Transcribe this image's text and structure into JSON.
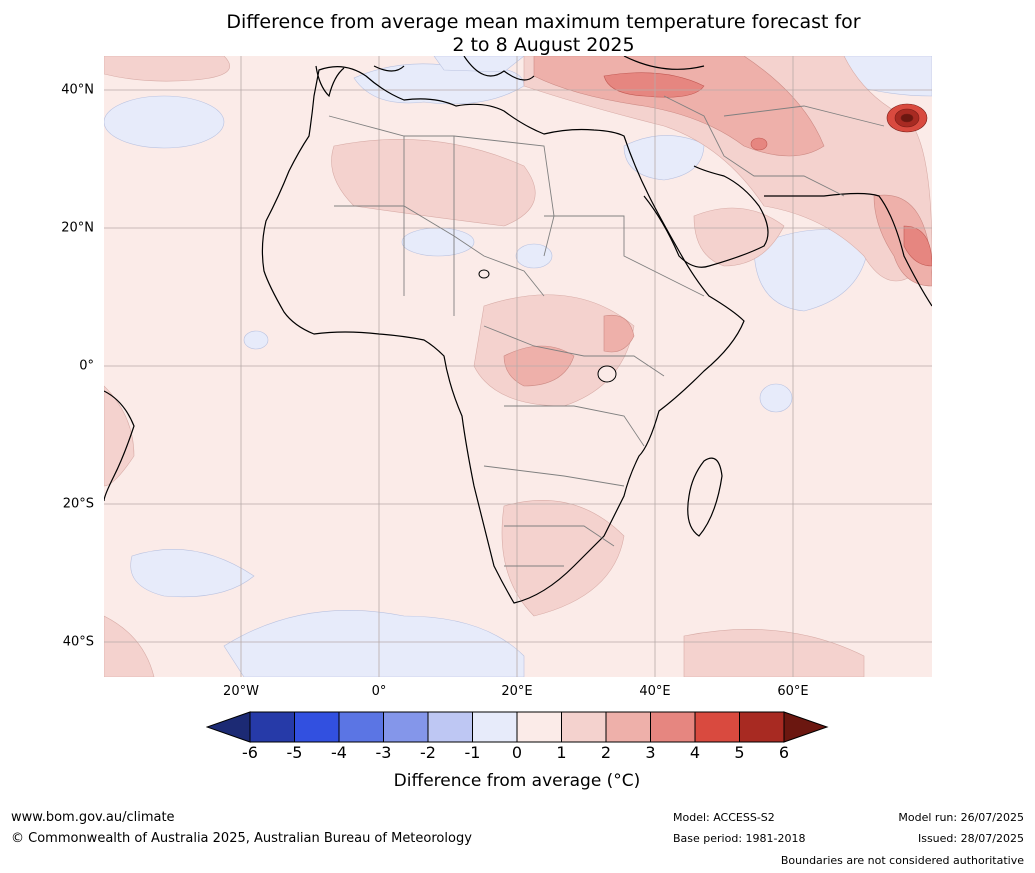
{
  "title": {
    "line1": "Difference from average mean maximum temperature forecast for",
    "line2": "2 to 8 August 2025"
  },
  "map": {
    "region": "Africa",
    "base_color": "#fbebe8",
    "lat_labels": [
      "40°N",
      "20°N",
      "0°",
      "20°S",
      "40°S"
    ],
    "lon_labels": [
      "20°W",
      "0°",
      "20°E",
      "40°E",
      "60°E"
    ],
    "notable_features": [
      "Strongest warm anomaly (+4 to +6 °C) near 37°N 74°E",
      "Warm anomalies (+1 to +3 °C) over Türkiye, Iran, Pakistan/north-west India, central Africa",
      "Cool anomalies (-1 to -2 °C) over the Mediterranean, northern Arabian Sea, South Atlantic"
    ]
  },
  "colorbar": {
    "label": "Difference from average (°C)",
    "ticks": [
      "-6",
      "-5",
      "-4",
      "-3",
      "-2",
      "-1",
      "0",
      "1",
      "2",
      "3",
      "4",
      "5",
      "6"
    ],
    "under_color": "#1c2a74",
    "over_color": "#6b1710",
    "colors": [
      "#263aa8",
      "#3250e0",
      "#5b75e4",
      "#8496ea",
      "#bec7f3",
      "#e7ebfa",
      "#fbebe8",
      "#f4d2ce",
      "#eeb0aa",
      "#e68680",
      "#d94a3f",
      "#a82a22"
    ]
  },
  "footer": {
    "website": "www.bom.gov.au/climate",
    "copyright": "© Commonwealth of Australia 2025, Australian Bureau of Meteorology",
    "model": "Model: ACCESS-S2",
    "base_period": "Base period: 1981-2018",
    "model_run": "Model run: 26/07/2025",
    "issued": "Issued: 28/07/2025",
    "disclaimer": "Boundaries are not considered authoritative"
  }
}
